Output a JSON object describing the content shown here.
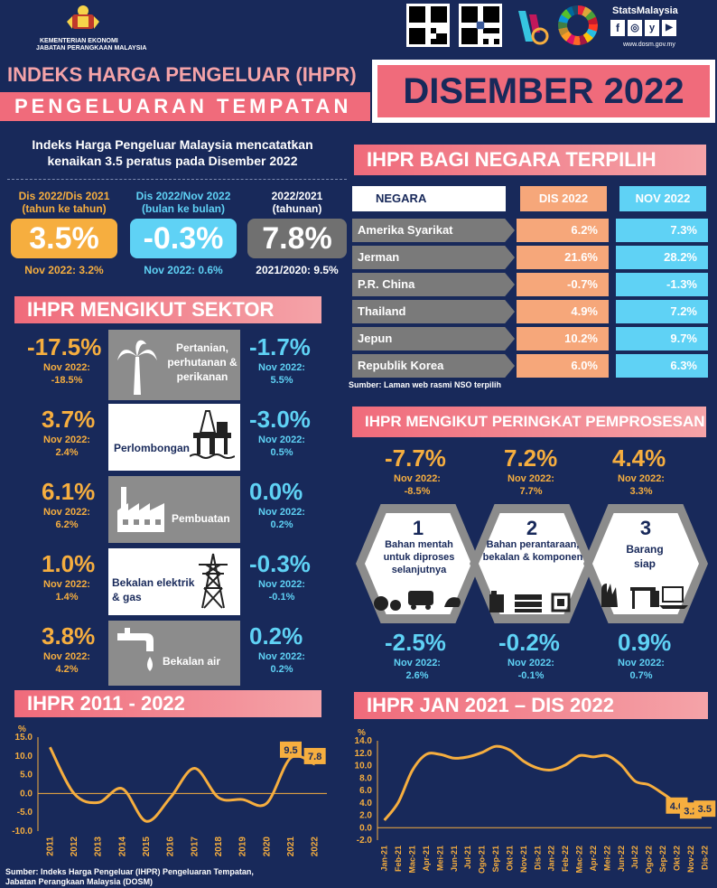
{
  "header": {
    "ministry_line1": "KEMENTERIAN EKONOMI",
    "ministry_line2": "JABATAN PERANGKAAN MALAYSIA",
    "stats_brand": "StatsMalaysia",
    "website": "www.dosm.gov.my",
    "sdg_label": "SUSTAINABLE DEVELOPMENT GOALS"
  },
  "title": {
    "line1": "INDEKS HARGA PENGELUAR (IHPR)",
    "line2": "PENGELUARAN TEMPATAN",
    "period": "DISEMBER 2022"
  },
  "summary": {
    "headline_1": "Indeks Harga Pengeluar Malaysia mencatatkan",
    "headline_2": "kenaikan 3.5 peratus pada Disember 2022",
    "cards": [
      {
        "label1": "Dis 2022/Dis 2021",
        "label2": "(tahun ke tahun)",
        "value": "3.5%",
        "note": "Nov 2022: 3.2%",
        "color": "#f6ae3f"
      },
      {
        "label1": "Dis 2022/Nov 2022",
        "label2": "(bulan ke bulan)",
        "value": "-0.3%",
        "note": "Nov 2022: 0.6%",
        "color": "#5fd2f5"
      },
      {
        "label1": "2022/2021",
        "label2": "(tahunan)",
        "value": "7.8%",
        "note": "2021/2020: 9.5%",
        "color": "#707070"
      }
    ]
  },
  "sector": {
    "title": "IHPR MENGIKUT SEKTOR",
    "rows": [
      {
        "yoy": "-17.5%",
        "yoy_prev_label": "Nov 2022:",
        "yoy_prev": "-18.5%",
        "name": "Pertanian, perhutanan & perikanan",
        "icon": "palm-tree-icon",
        "mom": "-1.7%",
        "mom_prev_label": "Nov 2022:",
        "mom_prev": "5.5%"
      },
      {
        "yoy": "3.7%",
        "yoy_prev_label": "Nov 2022:",
        "yoy_prev": "2.4%",
        "name": "Perlombongan",
        "icon": "oil-rig-icon",
        "mom": "-3.0%",
        "mom_prev_label": "Nov 2022:",
        "mom_prev": "0.5%"
      },
      {
        "yoy": "6.1%",
        "yoy_prev_label": "Nov 2022:",
        "yoy_prev": "6.2%",
        "name": "Pembuatan",
        "icon": "factory-icon",
        "mom": "0.0%",
        "mom_prev_label": "Nov 2022:",
        "mom_prev": "0.2%"
      },
      {
        "yoy": "1.0%",
        "yoy_prev_label": "Nov 2022:",
        "yoy_prev": "1.4%",
        "name": "Bekalan elektrik & gas",
        "icon": "power-tower-icon",
        "mom": "-0.3%",
        "mom_prev_label": "Nov 2022:",
        "mom_prev": "-0.1%"
      },
      {
        "yoy": "3.8%",
        "yoy_prev_label": "Nov 2022:",
        "yoy_prev": "4.2%",
        "name": "Bekalan air",
        "icon": "water-tap-icon",
        "mom": "0.2%",
        "mom_prev_label": "Nov 2022:",
        "mom_prev": "0.2%"
      }
    ]
  },
  "countries": {
    "title": "IHPR BAGI NEGARA TERPILIH",
    "col_country": "NEGARA",
    "col_dec": "DIS 2022",
    "col_nov": "NOV 2022",
    "rows": [
      {
        "name": "Amerika Syarikat",
        "dec": "6.2%",
        "nov": "7.3%"
      },
      {
        "name": "Jerman",
        "dec": "21.6%",
        "nov": "28.2%"
      },
      {
        "name": "P.R. China",
        "dec": "-0.7%",
        "nov": "-1.3%"
      },
      {
        "name": "Thailand",
        "dec": "4.9%",
        "nov": "7.2%"
      },
      {
        "name": "Jepun",
        "dec": "10.2%",
        "nov": "9.7%"
      },
      {
        "name": "Republik Korea",
        "dec": "6.0%",
        "nov": "6.3%"
      }
    ],
    "source": "Sumber: Laman web rasmi NSO terpilih"
  },
  "stages": {
    "title": "IHPR MENGIKUT PERINGKAT PEMPROSESAN",
    "items": [
      {
        "num": "1",
        "label": "Bahan mentah untuk diproses selanjutnya",
        "yoy": "-7.7%",
        "yoy_prev_label": "Nov 2022:",
        "yoy_prev": "-8.5%",
        "mom": "-2.5%",
        "mom_prev_label": "Nov 2022:",
        "mom_prev": "2.6%"
      },
      {
        "num": "2",
        "label": "Bahan perantaraan, bekalan & komponen",
        "yoy": "7.2%",
        "yoy_prev_label": "Nov 2022:",
        "yoy_prev": "7.7%",
        "mom": "-0.2%",
        "mom_prev_label": "Nov 2022:",
        "mom_prev": "-0.1%"
      },
      {
        "num": "3",
        "label": "Barang siap",
        "yoy": "4.4%",
        "yoy_prev_label": "Nov 2022:",
        "yoy_prev": "3.3%",
        "mom": "0.9%",
        "mom_prev_label": "Nov 2022:",
        "mom_prev": "0.7%"
      }
    ]
  },
  "annual_chart_title": "IHPR 2011 - 2022",
  "monthly_chart_title": "IHPR JAN 2021 – DIS 2022",
  "footer": {
    "source_line1": "Sumber: Indeks Harga Pengeluar (IHPR) Pengeluaran Tempatan,",
    "source_line2": "Jabatan Perangkaan Malaysia (DOSM)"
  },
  "colors": {
    "background": "#18295a",
    "orange": "#f6ae3f",
    "cyan": "#5fd2f5",
    "pink": "#f06b7b",
    "grey": "#707070"
  },
  "chart_data": [
    {
      "type": "line",
      "title": "IHPR 2011 - 2022",
      "ylabel": "%",
      "x": [
        "2011",
        "2012",
        "2013",
        "2014",
        "2015",
        "2016",
        "2017",
        "2018",
        "2019",
        "2020",
        "2021",
        "2022"
      ],
      "values": [
        12.3,
        0.0,
        -2.4,
        1.3,
        -7.4,
        -1.1,
        6.7,
        -1.1,
        -1.6,
        -2.6,
        9.5,
        7.8
      ],
      "ylim": [
        -10,
        15
      ],
      "yticks": [
        "15.0",
        "10.0",
        "5.0",
        "0.0",
        "-5.0",
        "-10.0"
      ],
      "data_labels": {
        "2021": "9.5",
        "2022": "7.8"
      },
      "color": "#f6ae3f",
      "grid": false
    },
    {
      "type": "line",
      "title": "IHPR JAN 2021 – DIS 2022",
      "ylabel": "%",
      "x": [
        "Jan-21",
        "Feb-21",
        "Mac-21",
        "Apr-21",
        "Mei-21",
        "Jun-21",
        "Jul-21",
        "Ogo-21",
        "Sep-21",
        "Okt-21",
        "Nov-21",
        "Dis-21",
        "Jan-22",
        "Feb-22",
        "Mac-22",
        "Apr-22",
        "Mei-22",
        "Jun-22",
        "Jul-22",
        "Ogo-22",
        "Sep-22",
        "Okt-22",
        "Nov-22",
        "Dis-22"
      ],
      "values": [
        1.2,
        4.1,
        9.2,
        11.8,
        11.8,
        11.2,
        11.4,
        12.1,
        13.1,
        12.5,
        10.7,
        9.6,
        9.3,
        10.1,
        11.6,
        11.4,
        11.6,
        10.1,
        7.5,
        6.9,
        5.5,
        4.0,
        3.2,
        3.5
      ],
      "ylim": [
        -2,
        14
      ],
      "yticks": [
        "14.0",
        "12.0",
        "10.0",
        "8.0",
        "6.0",
        "4.0",
        "2.0",
        "0.0",
        "-2.0"
      ],
      "data_labels": {
        "Okt-22": "4.0",
        "Nov-22": "3.2",
        "Dis-22": "3.5"
      },
      "color": "#f6ae3f",
      "grid": false
    }
  ]
}
